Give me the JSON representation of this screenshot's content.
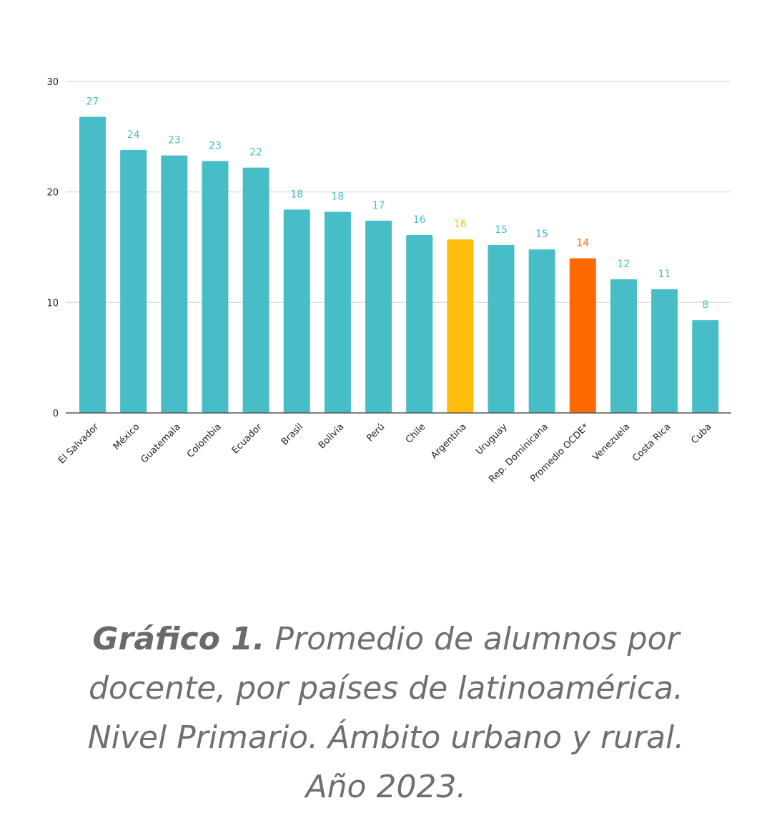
{
  "chart_data": {
    "type": "bar",
    "categories": [
      "El Salvador",
      "México",
      "Guatemala",
      "Colombia",
      "Ecuador",
      "Brasil",
      "Bolivia",
      "Perú",
      "Chile",
      "Argentina",
      "Uruguay",
      "Rep. Dominicana",
      "Promedio OCDE*",
      "Venezuela",
      "Costa Rica",
      "Cuba"
    ],
    "values": [
      26.8,
      23.8,
      23.3,
      22.8,
      22.2,
      18.4,
      18.2,
      17.4,
      16.1,
      15.7,
      15.2,
      14.8,
      14.0,
      12.1,
      11.2,
      8.4
    ],
    "value_labels": [
      "27",
      "24",
      "23",
      "23",
      "22",
      "18",
      "18",
      "17",
      "16",
      "16",
      "15",
      "15",
      "14",
      "12",
      "11",
      "8"
    ],
    "colors": [
      "#47bdc7",
      "#47bdc7",
      "#47bdc7",
      "#47bdc7",
      "#47bdc7",
      "#47bdc7",
      "#47bdc7",
      "#47bdc7",
      "#47bdc7",
      "#fdbd0a",
      "#47bdc7",
      "#47bdc7",
      "#ff6a00",
      "#47bdc7",
      "#47bdc7",
      "#47bdc7"
    ],
    "ylim": [
      0,
      30
    ],
    "yticks": [
      0,
      10,
      20,
      30
    ],
    "grid": true,
    "legend": "none",
    "title": "",
    "xlabel": "",
    "ylabel": ""
  },
  "caption": {
    "bold": "Gráfico 1.",
    "text": " Promedio de alumnos por docente, por países de latinoamérica. Nivel Primario. Ámbito urbano y rural. Año 2023."
  }
}
